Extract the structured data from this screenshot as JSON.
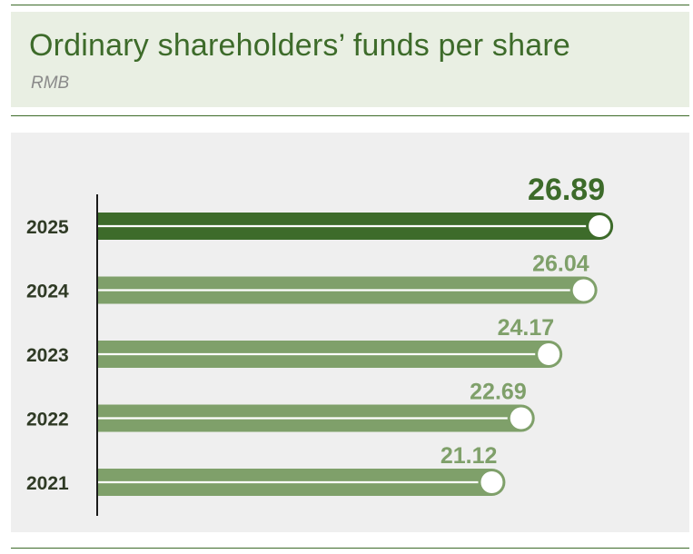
{
  "header": {
    "title": "Ordinary shareholders’ funds per share",
    "subtitle": "RMB"
  },
  "colors": {
    "highlight": "#3d6b2a",
    "bar": "#7fa06a",
    "axis": "#1a1a1a"
  },
  "chart_data": {
    "type": "bar",
    "orientation": "horizontal",
    "title": "Ordinary shareholders’ funds per share",
    "subtitle": "RMB",
    "categories": [
      "2025",
      "2024",
      "2023",
      "2022",
      "2021"
    ],
    "values": [
      26.89,
      26.04,
      24.17,
      22.69,
      21.12
    ],
    "highlight_category": "2025",
    "xlabel": "",
    "ylabel": "",
    "grid": false
  }
}
